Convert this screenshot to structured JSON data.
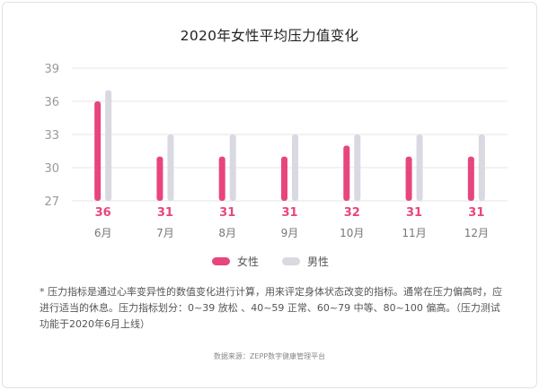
{
  "chart_data": {
    "type": "bar",
    "title": "2020年女性平均压力值变化",
    "categories": [
      "6月",
      "7月",
      "8月",
      "9月",
      "10月",
      "11月",
      "12月"
    ],
    "series": [
      {
        "name": "女性",
        "values": [
          36,
          31,
          31,
          31,
          32,
          31,
          31
        ],
        "color": "#e8457e"
      },
      {
        "name": "男性",
        "values": [
          37,
          33,
          33,
          33,
          33,
          33,
          33
        ],
        "color": "#d9d9e2"
      }
    ],
    "data_labels": [
      "36",
      "31",
      "31",
      "31",
      "32",
      "31",
      "31"
    ],
    "yticks": [
      "27",
      "30",
      "33",
      "36",
      "39"
    ],
    "ylim": [
      27,
      39
    ],
    "grid": true,
    "legend_position": "bottom-center",
    "accent_color": "#e8457e"
  },
  "footnote": "* 压力指标是通过心率变异性的数值变化进行计算，用来评定身体状态改变的指标。通常在压力偏高时，应进行适当的休息。压力指标划分：0~39 放松 、40~59 正常、60~79 中等、80~100 偏高。（压力测试功能于2020年6月上线）",
  "source": "数据来源：ZEPP数字健康管理平台"
}
